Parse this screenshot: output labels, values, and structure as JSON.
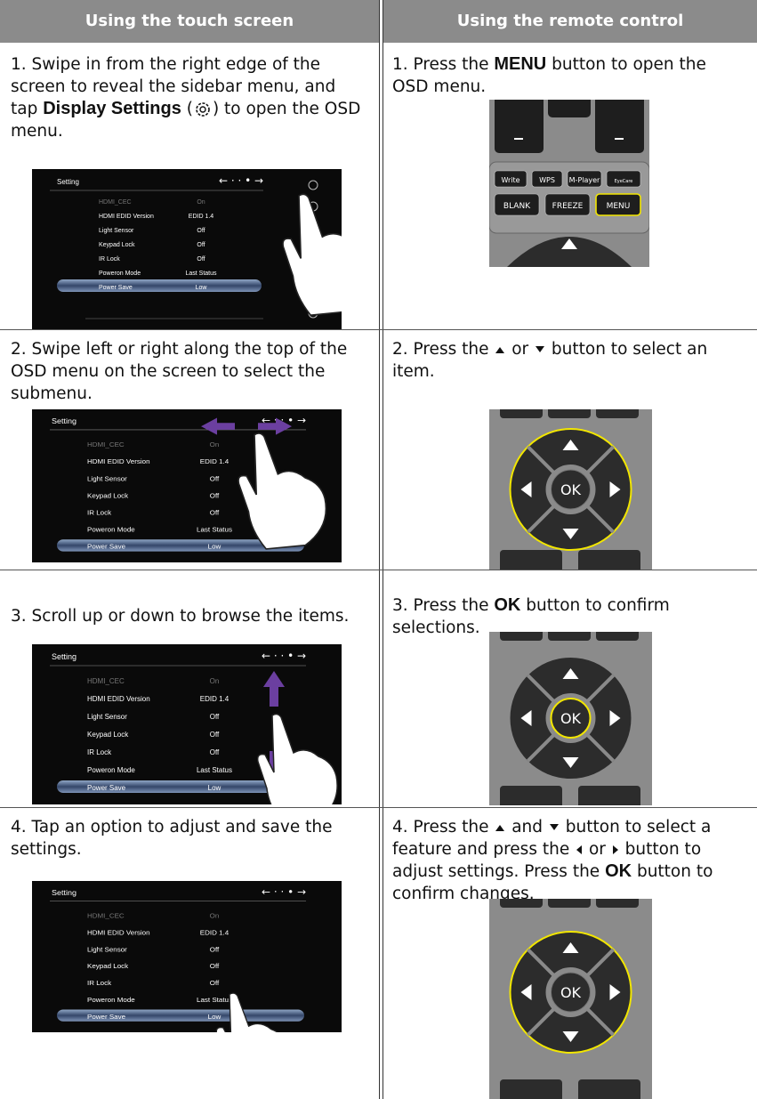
{
  "header": {
    "left": "Using the touch screen",
    "right": "Using the remote control"
  },
  "rows": [
    {
      "touch": [
        "1. Swipe in from the right edge of the screen to reveal the sidebar menu, and tap ",
        "Display Settings",
        " (",
        ") to open the OSD menu."
      ],
      "remote": [
        "1. Press the ",
        "MENU",
        " button to open the OSD menu."
      ]
    },
    {
      "touch": [
        "2. Swipe left or right along the top of the OSD menu on the screen to select the submenu."
      ],
      "remote": [
        "2. Press the ",
        " or ",
        " button to select an item."
      ]
    },
    {
      "touch": [
        "3. Scroll up or down to browse the items."
      ],
      "remote": [
        "3. Press the ",
        "OK",
        " button to confirm selections."
      ]
    },
    {
      "touch": [
        "4. Tap an option to adjust and save the settings."
      ],
      "remote": [
        "4. Press the ",
        " and ",
        " button to select a feature and press the ",
        " or ",
        " button to adjust settings. Press the ",
        "OK",
        " button to confirm changes."
      ]
    }
  ],
  "osd_menu": {
    "title": "Setting",
    "items": [
      {
        "label": "HDMI_CEC",
        "value": "On"
      },
      {
        "label": "HDMI EDID Version",
        "value": "EDID 1.4"
      },
      {
        "label": "Light Sensor",
        "value": "Off"
      },
      {
        "label": "Keypad Lock",
        "value": "Off"
      },
      {
        "label": "IR Lock",
        "value": "Off"
      },
      {
        "label": "Poweron Mode",
        "value": "Last Status"
      },
      {
        "label": "Power Save",
        "value": "Low"
      }
    ]
  },
  "remote": {
    "top_buttons": [
      "Write",
      "WPS",
      "M-Player",
      "EyeCare"
    ],
    "bottom_buttons": [
      "BLANK",
      "FREEZE",
      "MENU"
    ],
    "ok": "OK"
  }
}
